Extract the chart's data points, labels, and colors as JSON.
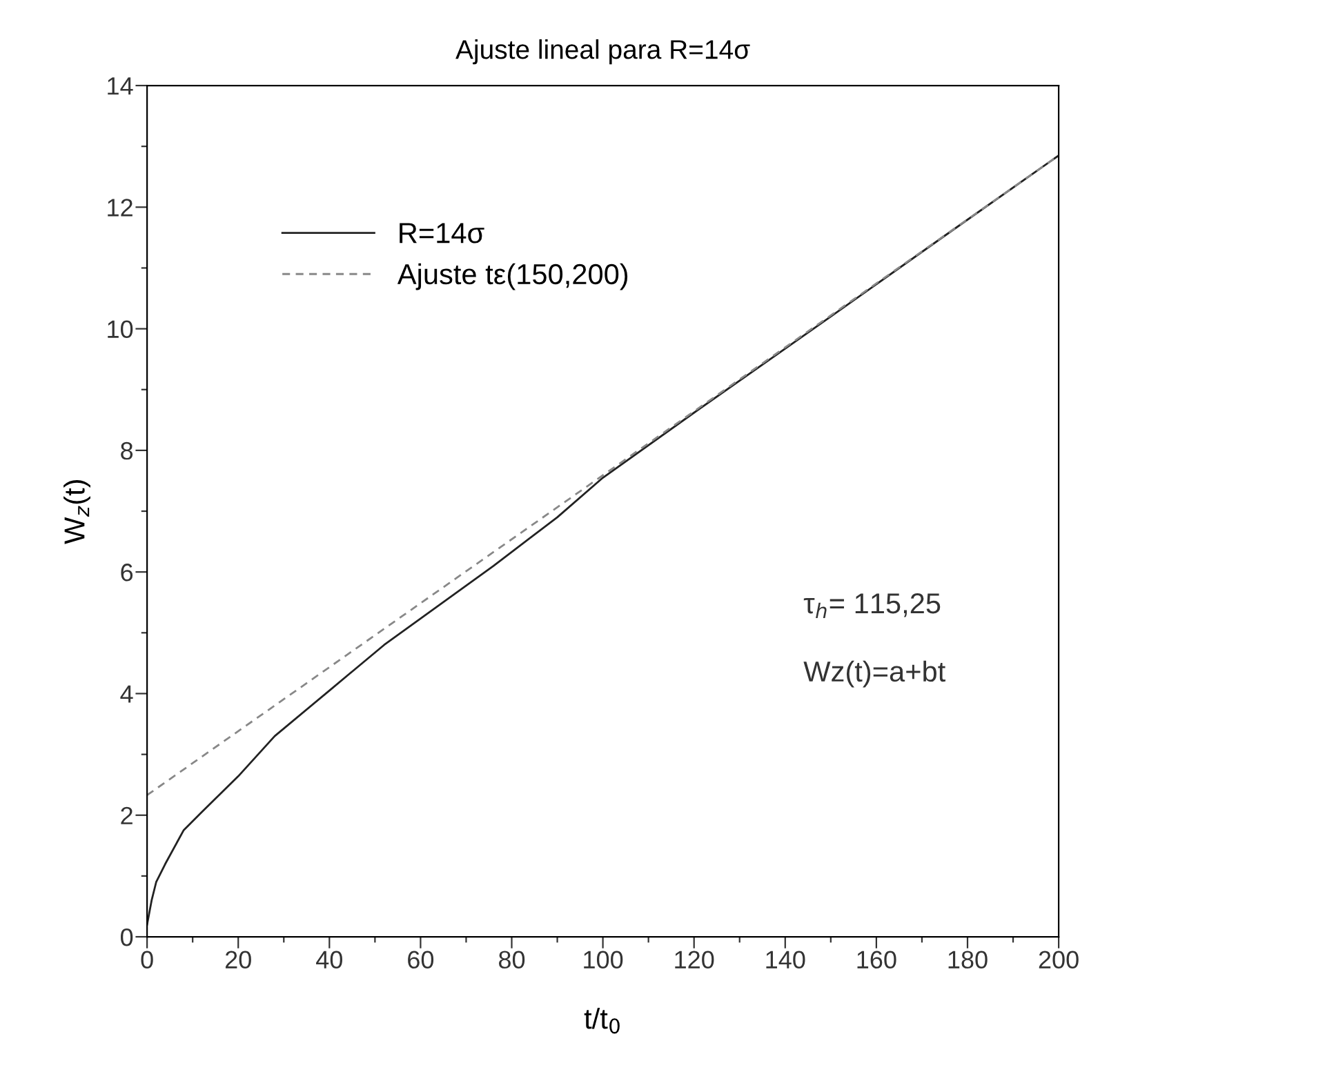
{
  "chart_data": {
    "type": "line",
    "title": "Ajuste lineal para R=14σ",
    "xlabel": "t/t$_{0}$",
    "ylabel": "W$_{z}$(t)",
    "annotations": [
      "τ$_{h}$= 115,25",
      "Wz(t)=a+bt"
    ],
    "series": [
      {
        "name": "R=14σ",
        "color": "#222222",
        "line_style": "solid",
        "x": [
          0,
          1,
          2,
          4,
          8,
          12,
          20,
          28,
          40,
          52,
          64,
          76,
          90,
          100,
          120,
          150,
          175,
          200
        ],
        "values": [
          0.2,
          0.6,
          0.9,
          1.2,
          1.75,
          2.05,
          2.64,
          3.3,
          4.05,
          4.8,
          5.45,
          6.1,
          6.9,
          7.55,
          8.62,
          10.2,
          11.53,
          12.85
        ]
      },
      {
        "name": "Ajuste tε(150,200)",
        "color": "#888888",
        "line_style": "dashed",
        "x": [
          0,
          200
        ],
        "values": [
          2.33,
          12.85
        ]
      }
    ],
    "xlim": [
      0,
      200
    ],
    "ylim": [
      0,
      14
    ],
    "xticks": [
      0,
      {
        "value": 10,
        "label": null
      },
      20,
      {
        "value": 30,
        "label": null
      },
      40,
      {
        "value": 50,
        "label": null
      },
      60,
      {
        "value": 70,
        "label": null
      },
      80,
      {
        "value": 90,
        "label": null
      },
      100,
      {
        "value": 110,
        "label": null
      },
      120,
      {
        "value": 130,
        "label": null
      },
      140,
      {
        "value": 150,
        "label": null
      },
      160,
      {
        "value": 170,
        "label": null
      },
      180,
      {
        "value": 190,
        "label": null
      },
      200
    ],
    "yticks": [
      0,
      {
        "value": 1,
        "label": null
      },
      2,
      {
        "value": 3,
        "label": null
      },
      4,
      {
        "value": 5,
        "label": null
      },
      6,
      {
        "value": 7,
        "label": null
      },
      8,
      {
        "value": 9,
        "label": null
      },
      10,
      {
        "value": 11,
        "label": null
      },
      12,
      {
        "value": 13,
        "label": null
      },
      14
    ],
    "grid": false,
    "legend": "top left",
    "marker": "none"
  }
}
